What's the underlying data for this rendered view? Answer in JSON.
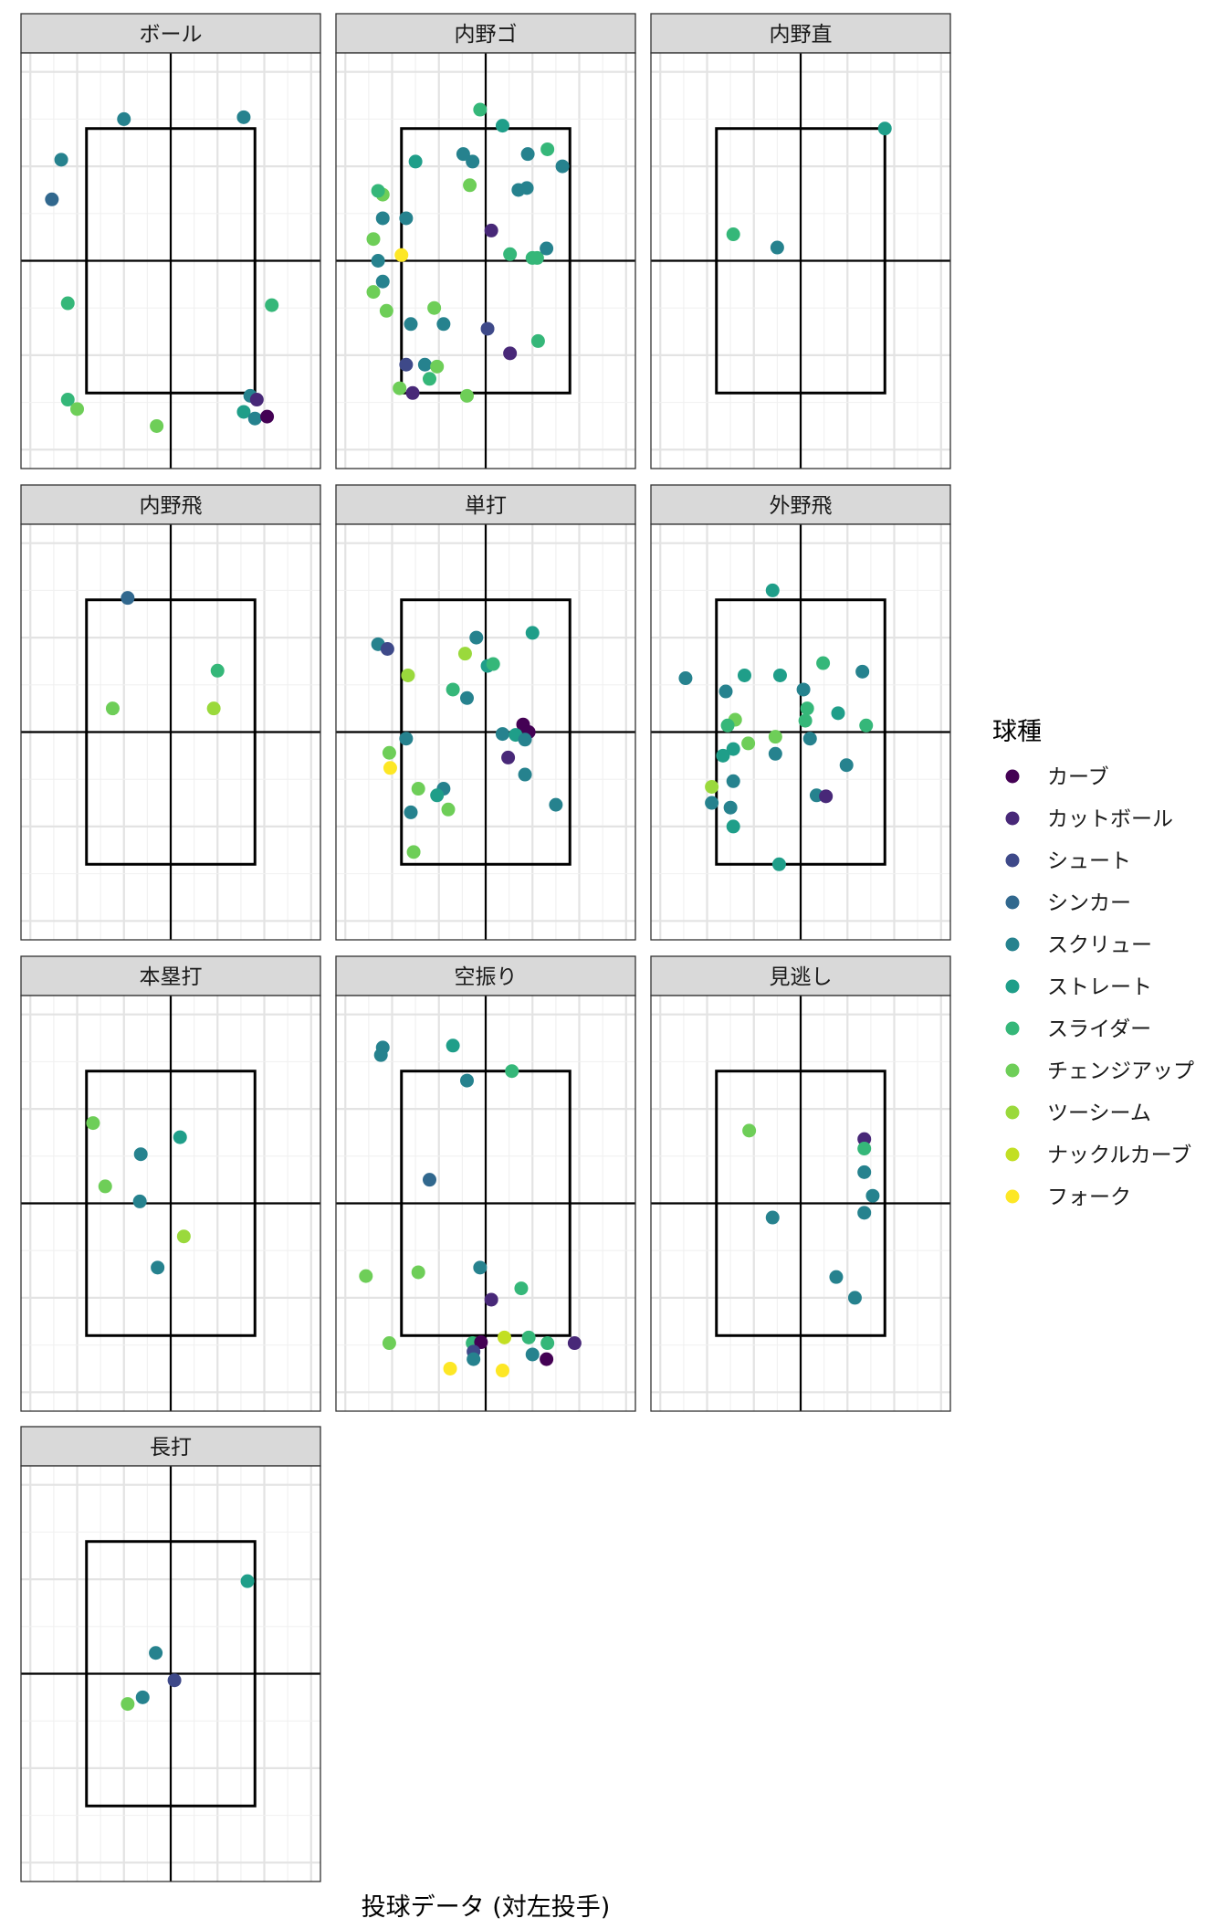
{
  "caption": "投球データ (対左投手)",
  "chart_data": {
    "type": "scatter",
    "facet_layout": "3 columns, 4 rows, facet wrap",
    "x_range": [
      -1.6,
      1.6
    ],
    "y_range": [
      -2.2,
      2.2
    ],
    "strike_zone": {
      "x": [
        -0.9,
        0.9
      ],
      "y": [
        -1.4,
        1.4
      ]
    },
    "grid": true,
    "legend_position": "right",
    "legend": {
      "title": "球種",
      "entries": [
        {
          "name": "カーブ",
          "color": "#440154"
        },
        {
          "name": "カットボール",
          "color": "#482878"
        },
        {
          "name": "シュート",
          "color": "#3e4989"
        },
        {
          "name": "シンカー",
          "color": "#31688e"
        },
        {
          "name": "スクリュー",
          "color": "#26828e"
        },
        {
          "name": "ストレート",
          "color": "#1f9e89"
        },
        {
          "name": "スライダー",
          "color": "#35b779"
        },
        {
          "name": "チェンジアップ",
          "color": "#6ece58"
        },
        {
          "name": "ツーシーム",
          "color": "#9ad93c"
        },
        {
          "name": "ナックルカーブ",
          "color": "#c2df23"
        },
        {
          "name": "フォーク",
          "color": "#fde725"
        }
      ]
    },
    "facets": [
      {
        "title": "ボール",
        "points": [
          {
            "x": -0.5,
            "y": 1.5,
            "pitch": "スクリュー"
          },
          {
            "x": 0.78,
            "y": 1.52,
            "pitch": "スクリュー"
          },
          {
            "x": -1.17,
            "y": 1.07,
            "pitch": "スクリュー"
          },
          {
            "x": -1.27,
            "y": 0.65,
            "pitch": "シンカー"
          },
          {
            "x": -1.1,
            "y": -0.45,
            "pitch": "スライダー"
          },
          {
            "x": 1.08,
            "y": -0.47,
            "pitch": "スライダー"
          },
          {
            "x": -1.1,
            "y": -1.47,
            "pitch": "スライダー"
          },
          {
            "x": -1.0,
            "y": -1.57,
            "pitch": "チェンジアップ"
          },
          {
            "x": -0.15,
            "y": -1.75,
            "pitch": "チェンジアップ"
          },
          {
            "x": 0.85,
            "y": -1.43,
            "pitch": "スクリュー"
          },
          {
            "x": 0.92,
            "y": -1.47,
            "pitch": "カットボール"
          },
          {
            "x": 0.78,
            "y": -1.6,
            "pitch": "ストレート"
          },
          {
            "x": 0.9,
            "y": -1.67,
            "pitch": "スクリュー"
          },
          {
            "x": 1.03,
            "y": -1.65,
            "pitch": "カーブ"
          }
        ]
      },
      {
        "title": "内野ゴ",
        "points": [
          {
            "x": -0.06,
            "y": 1.6,
            "pitch": "スライダー"
          },
          {
            "x": 0.18,
            "y": 1.43,
            "pitch": "ストレート"
          },
          {
            "x": -0.75,
            "y": 1.05,
            "pitch": "ストレート"
          },
          {
            "x": -0.24,
            "y": 1.13,
            "pitch": "スクリュー"
          },
          {
            "x": -0.14,
            "y": 1.05,
            "pitch": "スクリュー"
          },
          {
            "x": 0.45,
            "y": 1.13,
            "pitch": "スクリュー"
          },
          {
            "x": 0.66,
            "y": 1.18,
            "pitch": "スライダー"
          },
          {
            "x": 0.82,
            "y": 1.0,
            "pitch": "スクリュー"
          },
          {
            "x": -0.17,
            "y": 0.8,
            "pitch": "チェンジアップ"
          },
          {
            "x": 0.35,
            "y": 0.75,
            "pitch": "スクリュー"
          },
          {
            "x": 0.44,
            "y": 0.77,
            "pitch": "スクリュー"
          },
          {
            "x": -1.1,
            "y": 0.7,
            "pitch": "チェンジアップ"
          },
          {
            "x": -1.15,
            "y": 0.74,
            "pitch": "スライダー"
          },
          {
            "x": -1.1,
            "y": 0.45,
            "pitch": "スクリュー"
          },
          {
            "x": -0.85,
            "y": 0.45,
            "pitch": "スクリュー"
          },
          {
            "x": 0.06,
            "y": 0.32,
            "pitch": "カットボール"
          },
          {
            "x": -1.2,
            "y": 0.23,
            "pitch": "チェンジアップ"
          },
          {
            "x": -0.9,
            "y": 0.06,
            "pitch": "フォーク"
          },
          {
            "x": -1.15,
            "y": 0.0,
            "pitch": "スクリュー"
          },
          {
            "x": 0.26,
            "y": 0.07,
            "pitch": "スライダー"
          },
          {
            "x": 0.5,
            "y": 0.03,
            "pitch": "スライダー"
          },
          {
            "x": 0.55,
            "y": 0.03,
            "pitch": "スライダー"
          },
          {
            "x": 0.65,
            "y": 0.13,
            "pitch": "スクリュー"
          },
          {
            "x": -1.1,
            "y": -0.22,
            "pitch": "スクリュー"
          },
          {
            "x": -1.2,
            "y": -0.33,
            "pitch": "チェンジアップ"
          },
          {
            "x": -1.06,
            "y": -0.53,
            "pitch": "チェンジアップ"
          },
          {
            "x": -0.55,
            "y": -0.5,
            "pitch": "チェンジアップ"
          },
          {
            "x": -0.8,
            "y": -0.67,
            "pitch": "スクリュー"
          },
          {
            "x": -0.45,
            "y": -0.67,
            "pitch": "スクリュー"
          },
          {
            "x": 0.02,
            "y": -0.72,
            "pitch": "シュート"
          },
          {
            "x": 0.56,
            "y": -0.85,
            "pitch": "スライダー"
          },
          {
            "x": 0.26,
            "y": -0.98,
            "pitch": "カットボール"
          },
          {
            "x": -0.85,
            "y": -1.1,
            "pitch": "シュート"
          },
          {
            "x": -0.65,
            "y": -1.1,
            "pitch": "スクリュー"
          },
          {
            "x": -0.52,
            "y": -1.12,
            "pitch": "チェンジアップ"
          },
          {
            "x": -0.6,
            "y": -1.25,
            "pitch": "スライダー"
          },
          {
            "x": -0.92,
            "y": -1.35,
            "pitch": "チェンジアップ"
          },
          {
            "x": -0.78,
            "y": -1.4,
            "pitch": "カットボール"
          },
          {
            "x": -0.2,
            "y": -1.43,
            "pitch": "チェンジアップ"
          }
        ]
      },
      {
        "title": "内野直",
        "points": [
          {
            "x": 0.9,
            "y": 1.4,
            "pitch": "ストレート"
          },
          {
            "x": -0.72,
            "y": 0.28,
            "pitch": "スライダー"
          },
          {
            "x": -0.25,
            "y": 0.14,
            "pitch": "スクリュー"
          }
        ]
      },
      {
        "title": "内野飛",
        "points": [
          {
            "x": -0.46,
            "y": 1.42,
            "pitch": "シンカー"
          },
          {
            "x": 0.5,
            "y": 0.65,
            "pitch": "スライダー"
          },
          {
            "x": -0.62,
            "y": 0.25,
            "pitch": "チェンジアップ"
          },
          {
            "x": 0.46,
            "y": 0.25,
            "pitch": "ツーシーム"
          }
        ]
      },
      {
        "title": "単打",
        "points": [
          {
            "x": 0.5,
            "y": 1.05,
            "pitch": "ストレート"
          },
          {
            "x": -0.1,
            "y": 1.0,
            "pitch": "スクリュー"
          },
          {
            "x": -1.15,
            "y": 0.93,
            "pitch": "スクリュー"
          },
          {
            "x": -1.05,
            "y": 0.88,
            "pitch": "シュート"
          },
          {
            "x": -0.22,
            "y": 0.83,
            "pitch": "ツーシーム"
          },
          {
            "x": 0.02,
            "y": 0.7,
            "pitch": "ストレート"
          },
          {
            "x": 0.08,
            "y": 0.72,
            "pitch": "スライダー"
          },
          {
            "x": -0.83,
            "y": 0.6,
            "pitch": "ツーシーム"
          },
          {
            "x": -0.35,
            "y": 0.45,
            "pitch": "スライダー"
          },
          {
            "x": -0.2,
            "y": 0.36,
            "pitch": "スクリュー"
          },
          {
            "x": 0.4,
            "y": 0.08,
            "pitch": "カーブ"
          },
          {
            "x": 0.46,
            "y": 0.0,
            "pitch": "カーブ"
          },
          {
            "x": 0.18,
            "y": -0.02,
            "pitch": "スクリュー"
          },
          {
            "x": 0.32,
            "y": -0.03,
            "pitch": "ストレート"
          },
          {
            "x": 0.42,
            "y": -0.08,
            "pitch": "スクリュー"
          },
          {
            "x": -0.85,
            "y": -0.07,
            "pitch": "スクリュー"
          },
          {
            "x": -1.03,
            "y": -0.22,
            "pitch": "チェンジアップ"
          },
          {
            "x": 0.24,
            "y": -0.27,
            "pitch": "カットボール"
          },
          {
            "x": -1.02,
            "y": -0.38,
            "pitch": "フォーク"
          },
          {
            "x": 0.42,
            "y": -0.45,
            "pitch": "スクリュー"
          },
          {
            "x": -0.72,
            "y": -0.6,
            "pitch": "チェンジアップ"
          },
          {
            "x": -0.45,
            "y": -0.6,
            "pitch": "スクリュー"
          },
          {
            "x": -0.52,
            "y": -0.67,
            "pitch": "ストレート"
          },
          {
            "x": 0.75,
            "y": -0.77,
            "pitch": "スクリュー"
          },
          {
            "x": -0.4,
            "y": -0.82,
            "pitch": "チェンジアップ"
          },
          {
            "x": -0.8,
            "y": -0.85,
            "pitch": "スクリュー"
          },
          {
            "x": -0.77,
            "y": -1.27,
            "pitch": "チェンジアップ"
          }
        ]
      },
      {
        "title": "外野飛",
        "points": [
          {
            "x": -0.3,
            "y": 1.5,
            "pitch": "ストレート"
          },
          {
            "x": 0.24,
            "y": 0.73,
            "pitch": "スライダー"
          },
          {
            "x": 0.66,
            "y": 0.64,
            "pitch": "スクリュー"
          },
          {
            "x": -1.23,
            "y": 0.57,
            "pitch": "スクリュー"
          },
          {
            "x": -0.6,
            "y": 0.6,
            "pitch": "ストレート"
          },
          {
            "x": -0.22,
            "y": 0.6,
            "pitch": "ストレート"
          },
          {
            "x": -0.8,
            "y": 0.43,
            "pitch": "スクリュー"
          },
          {
            "x": 0.03,
            "y": 0.45,
            "pitch": "スクリュー"
          },
          {
            "x": 0.07,
            "y": 0.25,
            "pitch": "スライダー"
          },
          {
            "x": 0.4,
            "y": 0.2,
            "pitch": "ストレート"
          },
          {
            "x": -0.7,
            "y": 0.13,
            "pitch": "チェンジアップ"
          },
          {
            "x": -0.78,
            "y": 0.07,
            "pitch": "スライダー"
          },
          {
            "x": 0.05,
            "y": 0.12,
            "pitch": "スライダー"
          },
          {
            "x": 0.7,
            "y": 0.07,
            "pitch": "スライダー"
          },
          {
            "x": -0.27,
            "y": -0.05,
            "pitch": "チェンジアップ"
          },
          {
            "x": 0.1,
            "y": -0.07,
            "pitch": "スクリュー"
          },
          {
            "x": -0.56,
            "y": -0.12,
            "pitch": "チェンジアップ"
          },
          {
            "x": -0.72,
            "y": -0.18,
            "pitch": "ストレート"
          },
          {
            "x": -0.83,
            "y": -0.25,
            "pitch": "ストレート"
          },
          {
            "x": -0.27,
            "y": -0.23,
            "pitch": "スクリュー"
          },
          {
            "x": 0.49,
            "y": -0.35,
            "pitch": "スクリュー"
          },
          {
            "x": -0.72,
            "y": -0.52,
            "pitch": "スクリュー"
          },
          {
            "x": -0.95,
            "y": -0.58,
            "pitch": "ツーシーム"
          },
          {
            "x": 0.17,
            "y": -0.67,
            "pitch": "スクリュー"
          },
          {
            "x": 0.27,
            "y": -0.68,
            "pitch": "カットボール"
          },
          {
            "x": -0.95,
            "y": -0.75,
            "pitch": "スクリュー"
          },
          {
            "x": -0.75,
            "y": -0.8,
            "pitch": "スクリュー"
          },
          {
            "x": -0.72,
            "y": -1.0,
            "pitch": "ストレート"
          },
          {
            "x": -0.23,
            "y": -1.4,
            "pitch": "ストレート"
          }
        ]
      },
      {
        "title": "本塁打",
        "points": [
          {
            "x": 0.1,
            "y": 0.7,
            "pitch": "ストレート"
          },
          {
            "x": -0.83,
            "y": 0.85,
            "pitch": "チェンジアップ"
          },
          {
            "x": -0.32,
            "y": 0.52,
            "pitch": "スクリュー"
          },
          {
            "x": -0.7,
            "y": 0.18,
            "pitch": "チェンジアップ"
          },
          {
            "x": -0.33,
            "y": 0.02,
            "pitch": "スクリュー"
          },
          {
            "x": 0.14,
            "y": -0.35,
            "pitch": "ツーシーム"
          },
          {
            "x": -0.14,
            "y": -0.68,
            "pitch": "スクリュー"
          }
        ]
      },
      {
        "title": "空振り",
        "points": [
          {
            "x": -1.1,
            "y": 1.65,
            "pitch": "スクリュー"
          },
          {
            "x": -1.12,
            "y": 1.57,
            "pitch": "スクリュー"
          },
          {
            "x": -0.35,
            "y": 1.67,
            "pitch": "ストレート"
          },
          {
            "x": -0.2,
            "y": 1.3,
            "pitch": "スクリュー"
          },
          {
            "x": 0.28,
            "y": 1.4,
            "pitch": "スライダー"
          },
          {
            "x": -0.6,
            "y": 0.25,
            "pitch": "シンカー"
          },
          {
            "x": -1.28,
            "y": -0.77,
            "pitch": "チェンジアップ"
          },
          {
            "x": -0.72,
            "y": -0.73,
            "pitch": "チェンジアップ"
          },
          {
            "x": -0.06,
            "y": -0.68,
            "pitch": "スクリュー"
          },
          {
            "x": 0.38,
            "y": -0.9,
            "pitch": "スライダー"
          },
          {
            "x": 0.06,
            "y": -1.02,
            "pitch": "カットボール"
          },
          {
            "x": -1.03,
            "y": -1.48,
            "pitch": "チェンジアップ"
          },
          {
            "x": -0.14,
            "y": -1.48,
            "pitch": "スライダー"
          },
          {
            "x": -0.05,
            "y": -1.47,
            "pitch": "カーブ"
          },
          {
            "x": 0.2,
            "y": -1.42,
            "pitch": "ナックルカーブ"
          },
          {
            "x": 0.46,
            "y": -1.42,
            "pitch": "スライダー"
          },
          {
            "x": 0.66,
            "y": -1.48,
            "pitch": "スライダー"
          },
          {
            "x": 0.95,
            "y": -1.48,
            "pitch": "カットボール"
          },
          {
            "x": -0.13,
            "y": -1.57,
            "pitch": "シュート"
          },
          {
            "x": -0.13,
            "y": -1.65,
            "pitch": "スクリュー"
          },
          {
            "x": 0.5,
            "y": -1.6,
            "pitch": "スクリュー"
          },
          {
            "x": 0.65,
            "y": -1.65,
            "pitch": "カーブ"
          },
          {
            "x": -0.38,
            "y": -1.75,
            "pitch": "フォーク"
          },
          {
            "x": 0.18,
            "y": -1.77,
            "pitch": "フォーク"
          }
        ]
      },
      {
        "title": "見逃し",
        "points": [
          {
            "x": -0.55,
            "y": 0.77,
            "pitch": "チェンジアップ"
          },
          {
            "x": 0.68,
            "y": 0.68,
            "pitch": "カットボール"
          },
          {
            "x": 0.68,
            "y": 0.58,
            "pitch": "スライダー"
          },
          {
            "x": 0.68,
            "y": 0.33,
            "pitch": "スクリュー"
          },
          {
            "x": 0.77,
            "y": 0.08,
            "pitch": "スクリュー"
          },
          {
            "x": -0.3,
            "y": -0.15,
            "pitch": "スクリュー"
          },
          {
            "x": 0.68,
            "y": -0.1,
            "pitch": "スクリュー"
          },
          {
            "x": 0.38,
            "y": -0.78,
            "pitch": "スクリュー"
          },
          {
            "x": 0.58,
            "y": -1.0,
            "pitch": "スクリュー"
          }
        ]
      },
      {
        "title": "長打",
        "points": [
          {
            "x": 0.82,
            "y": 0.98,
            "pitch": "ストレート"
          },
          {
            "x": -0.16,
            "y": 0.22,
            "pitch": "スクリュー"
          },
          {
            "x": 0.04,
            "y": -0.07,
            "pitch": "シュート"
          },
          {
            "x": -0.3,
            "y": -0.25,
            "pitch": "スクリュー"
          },
          {
            "x": -0.46,
            "y": -0.32,
            "pitch": "チェンジアップ"
          }
        ]
      }
    ]
  }
}
